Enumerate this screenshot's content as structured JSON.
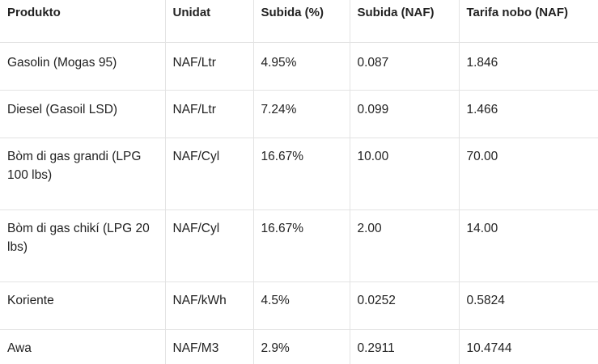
{
  "headers": [
    "Produkto",
    "Unidat",
    "Subida (%)",
    "Subida (NAF)",
    "Tarifa nobo (NAF)"
  ],
  "rows": [
    [
      "Gasolin (Mogas 95)",
      "NAF/Ltr",
      "4.95%",
      "0.087",
      "1.846"
    ],
    [
      "Diesel (Gasoil LSD)",
      "NAF/Ltr",
      "7.24%",
      "0.099",
      "1.466"
    ],
    [
      "Bòm di gas grandi (LPG 100 lbs)",
      "NAF/Cyl",
      "16.67%",
      "10.00",
      "70.00"
    ],
    [
      "Bòm di gas chikí (LPG 20 lbs)",
      "NAF/Cyl",
      "16.67%",
      "2.00",
      "14.00"
    ],
    [
      "Koriente",
      "NAF/kWh",
      "4.5%",
      "0.0252",
      "0.5824"
    ],
    [
      "Awa",
      "NAF/M3",
      "2.9%",
      "0.2911",
      "10.4744"
    ]
  ]
}
